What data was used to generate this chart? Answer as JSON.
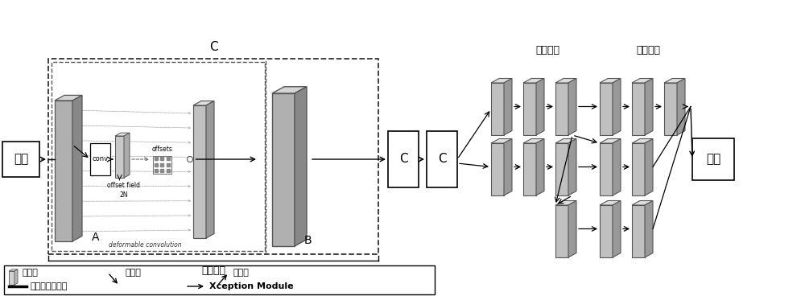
{
  "bg_color": "#ffffff",
  "input_label": "输入",
  "output_label": "输出",
  "label_C_outer": "C",
  "label_A": "A",
  "label_B": "B",
  "label_C1": "C",
  "label_C2": "C",
  "label_stage1": "第一阶段",
  "label_stage2": "第二阶段",
  "label_stage3": "第三阶段",
  "label_conv": "conv",
  "label_offset_field": "offset field",
  "label_2N": "2N",
  "label_offsets": "offsets",
  "label_deform": "deformable convolution",
  "legend_feature": "特征图",
  "legend_downsample": "下采样",
  "legend_upsample": "上采样",
  "legend_deform_module": "可变形卷积模块",
  "legend_xception": "Xception Module",
  "face_color_large": "#b0b0b0",
  "side_color_large": "#888888",
  "top_color_large": "#d5d5d5",
  "face_color_med": "#c0c0c0",
  "side_color_med": "#999999",
  "top_color_med": "#dedede",
  "face_color_small": "#c8c8c8",
  "side_color_small": "#aaaaaa",
  "top_color_small": "#e5e5e5"
}
